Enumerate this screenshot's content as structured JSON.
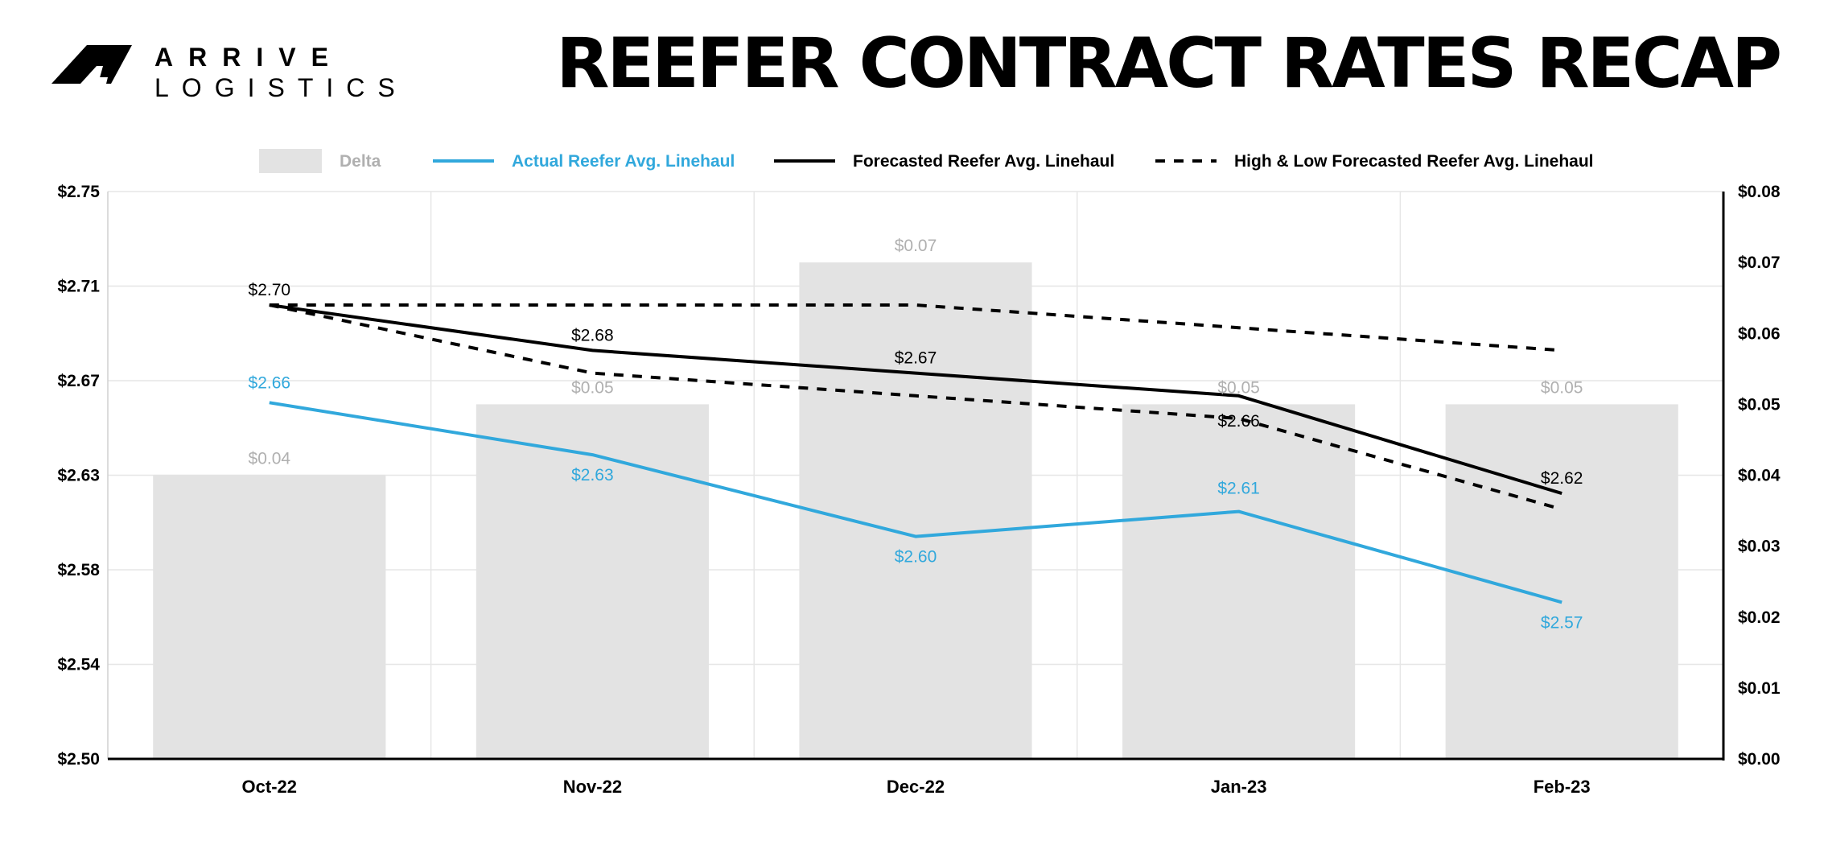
{
  "header": {
    "title": "REEFER CONTRACT RATES RECAP",
    "logo_top": "ARRIVE",
    "logo_bottom": "LOGISTICS"
  },
  "colors": {
    "delta": "#e3e3e3",
    "delta_label": "#b0b0b0",
    "actual": "#31a8dc",
    "forecast": "#000000",
    "grid": "#e6e6e6"
  },
  "chart_data": {
    "type": "bar",
    "categories": [
      "Oct-22",
      "Nov-22",
      "Dec-22",
      "Jan-23",
      "Feb-23"
    ],
    "left_axis": {
      "ylim": [
        2.5,
        2.75
      ],
      "ticks": [
        "$2.50",
        "$2.54",
        "$2.58",
        "$2.63",
        "$2.67",
        "$2.71",
        "$2.75"
      ]
    },
    "right_axis": {
      "ylim": [
        0.0,
        0.08
      ],
      "ticks": [
        "$0.00",
        "$0.01",
        "$0.02",
        "$0.03",
        "$0.04",
        "$0.05",
        "$0.06",
        "$0.07",
        "$0.08"
      ]
    },
    "grid": true,
    "legend_position": "top",
    "bars": {
      "name": "Delta",
      "axis": "right",
      "values": [
        0.04,
        0.05,
        0.07,
        0.05,
        0.05
      ],
      "labels": [
        "$0.04",
        "$0.05",
        "$0.07",
        "$0.05",
        "$0.05"
      ]
    },
    "series": [
      {
        "name": "Actual Reefer Avg. Linehaul",
        "style": "solid",
        "color": "#31a8dc",
        "values": [
          2.657,
          2.634,
          2.598,
          2.609,
          2.569
        ],
        "labels": [
          "$2.66",
          "$2.63",
          "$2.60",
          "$2.61",
          "$2.57"
        ]
      },
      {
        "name": "Forecasted Reefer Avg. Linehaul",
        "style": "solid",
        "color": "#000000",
        "values": [
          2.7,
          2.68,
          2.67,
          2.66,
          2.617
        ],
        "labels": [
          "$2.70",
          "$2.68",
          "$2.67",
          "$2.66",
          "$2.62"
        ]
      },
      {
        "name": "High & Low Forecasted Reefer Avg. Linehaul",
        "style": "dashed",
        "color": "#000000",
        "legend": true,
        "values": [
          2.7,
          2.7,
          2.7,
          2.69,
          2.68
        ]
      },
      {
        "name": "High & Low Forecasted Reefer Avg. Linehaul",
        "style": "dashed",
        "color": "#000000",
        "legend": false,
        "values": [
          2.7,
          2.67,
          2.66,
          2.65,
          2.61
        ]
      }
    ]
  }
}
